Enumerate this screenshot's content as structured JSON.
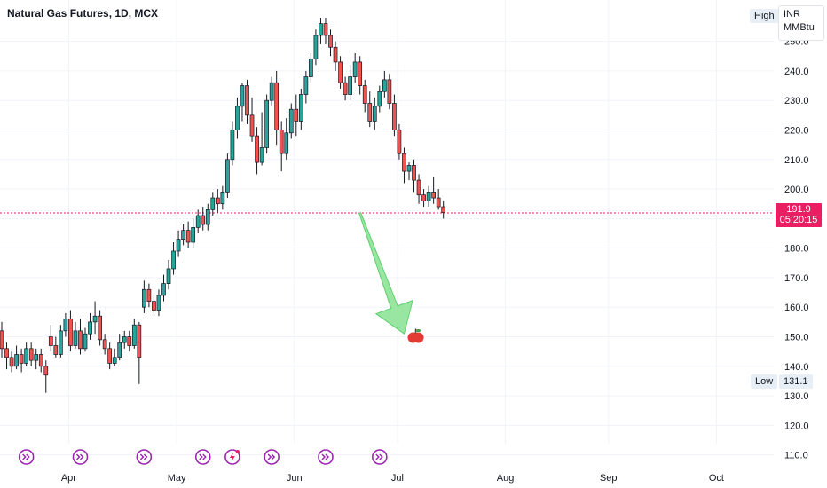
{
  "header": {
    "title": "Natural Gas Futures, 1D, MCX"
  },
  "units": {
    "currency": "INR",
    "unit": "MMBtu"
  },
  "high_label": "High",
  "low_label": "Low",
  "low_value": "131.1",
  "current_price": {
    "value": "191.9",
    "countdown": "05:20:15"
  },
  "colors": {
    "up": "#26a69a",
    "down": "#ef5350",
    "price_line": "#e91e63",
    "arrow": "#7ee08a",
    "event": "#9c27b0"
  },
  "chart_data": {
    "type": "candlestick",
    "y_ticks": [
      "110.0",
      "120.0",
      "130.0",
      "140.0",
      "150.0",
      "160.0",
      "170.0",
      "180.0",
      "190.0",
      "200.0",
      "210.0",
      "220.0",
      "230.0",
      "240.0",
      "250.0"
    ],
    "x_ticks": [
      "Apr",
      "May",
      "Jun",
      "Jul",
      "Aug",
      "Sep",
      "Oct"
    ],
    "ylim": [
      106,
      264
    ],
    "current_price": 191.9,
    "high": 258,
    "low": 131.1,
    "candles": [
      [
        152,
        146,
        155,
        143
      ],
      [
        146,
        143,
        148,
        139
      ],
      [
        143,
        140,
        145,
        138
      ],
      [
        140,
        144,
        147,
        139
      ],
      [
        144,
        141,
        146,
        138
      ],
      [
        141,
        146,
        148,
        140
      ],
      [
        146,
        142,
        148,
        140
      ],
      [
        142,
        144,
        146,
        139
      ],
      [
        144,
        140,
        146,
        138
      ],
      [
        140,
        137,
        142,
        131
      ],
      [
        150,
        147,
        154,
        145
      ],
      [
        147,
        144,
        150,
        143
      ],
      [
        144,
        152,
        154,
        143
      ],
      [
        152,
        156,
        158,
        150
      ],
      [
        156,
        147,
        159,
        145
      ],
      [
        147,
        152,
        155,
        146
      ],
      [
        152,
        146,
        156,
        144
      ],
      [
        146,
        151,
        153,
        145
      ],
      [
        151,
        155,
        158,
        149
      ],
      [
        155,
        157,
        162,
        151
      ],
      [
        157,
        149,
        159,
        147
      ],
      [
        149,
        146,
        151,
        144
      ],
      [
        146,
        141,
        148,
        139
      ],
      [
        141,
        143,
        146,
        140
      ],
      [
        143,
        148,
        151,
        142
      ],
      [
        148,
        150,
        152,
        146
      ],
      [
        150,
        147,
        152,
        145
      ],
      [
        147,
        154,
        156,
        146
      ],
      [
        154,
        143,
        155,
        134
      ],
      [
        160,
        166,
        169,
        158
      ],
      [
        166,
        162,
        168,
        160
      ],
      [
        162,
        159,
        164,
        157
      ],
      [
        159,
        164,
        166,
        157
      ],
      [
        164,
        168,
        171,
        162
      ],
      [
        168,
        173,
        176,
        166
      ],
      [
        173,
        179,
        182,
        171
      ],
      [
        179,
        183,
        186,
        177
      ],
      [
        183,
        186,
        188,
        181
      ],
      [
        186,
        182,
        189,
        180
      ],
      [
        182,
        187,
        190,
        180
      ],
      [
        187,
        191,
        193,
        185
      ],
      [
        191,
        188,
        194,
        186
      ],
      [
        188,
        193,
        195,
        186
      ],
      [
        193,
        197,
        199,
        191
      ],
      [
        197,
        195,
        200,
        192
      ],
      [
        195,
        199,
        201,
        193
      ],
      [
        199,
        210,
        212,
        197
      ],
      [
        210,
        220,
        223,
        208
      ],
      [
        220,
        228,
        231,
        217
      ],
      [
        228,
        235,
        236,
        223
      ],
      [
        235,
        225,
        237,
        222
      ],
      [
        225,
        218,
        231,
        216
      ],
      [
        218,
        209,
        221,
        205
      ],
      [
        209,
        214,
        226,
        208
      ],
      [
        214,
        230,
        232,
        212
      ],
      [
        230,
        236,
        238,
        228
      ],
      [
        236,
        220,
        240,
        215
      ],
      [
        220,
        212,
        223,
        206
      ],
      [
        212,
        219,
        224,
        210
      ],
      [
        219,
        227,
        229,
        217
      ],
      [
        227,
        223,
        232,
        218
      ],
      [
        223,
        232,
        234,
        220
      ],
      [
        232,
        238,
        240,
        229
      ],
      [
        238,
        244,
        246,
        236
      ],
      [
        244,
        252,
        254,
        242
      ],
      [
        252,
        256,
        258,
        249
      ],
      [
        256,
        252,
        258,
        249
      ],
      [
        252,
        248,
        254,
        245
      ],
      [
        248,
        243,
        250,
        240
      ],
      [
        243,
        236,
        245,
        234
      ],
      [
        236,
        232,
        238,
        230
      ],
      [
        232,
        238,
        242,
        230
      ],
      [
        238,
        243,
        246,
        236
      ],
      [
        243,
        235,
        245,
        232
      ],
      [
        235,
        229,
        237,
        226
      ],
      [
        229,
        223,
        233,
        221
      ],
      [
        223,
        228,
        231,
        220
      ],
      [
        228,
        233,
        235,
        226
      ],
      [
        233,
        237,
        240,
        231
      ],
      [
        237,
        229,
        239,
        227
      ],
      [
        229,
        220,
        232,
        218
      ],
      [
        220,
        212,
        222,
        210
      ],
      [
        212,
        206,
        214,
        202
      ],
      [
        206,
        208,
        209,
        203
      ],
      [
        208,
        203,
        210,
        199
      ],
      [
        203,
        198,
        205,
        195
      ],
      [
        198,
        196,
        200,
        194
      ],
      [
        196,
        199,
        201,
        194
      ],
      [
        199,
        197,
        204,
        195
      ],
      [
        197,
        194,
        200,
        193
      ],
      [
        194,
        192,
        196,
        190
      ]
    ],
    "arrow": {
      "from": [
        73,
        191.9
      ],
      "to": [
        82,
        151
      ]
    },
    "target_icon": {
      "x": 84,
      "y": 150,
      "name": "apple-icon"
    },
    "event_markers": [
      5,
      16,
      29,
      41,
      47,
      55,
      66,
      77
    ],
    "active_event": 47
  }
}
